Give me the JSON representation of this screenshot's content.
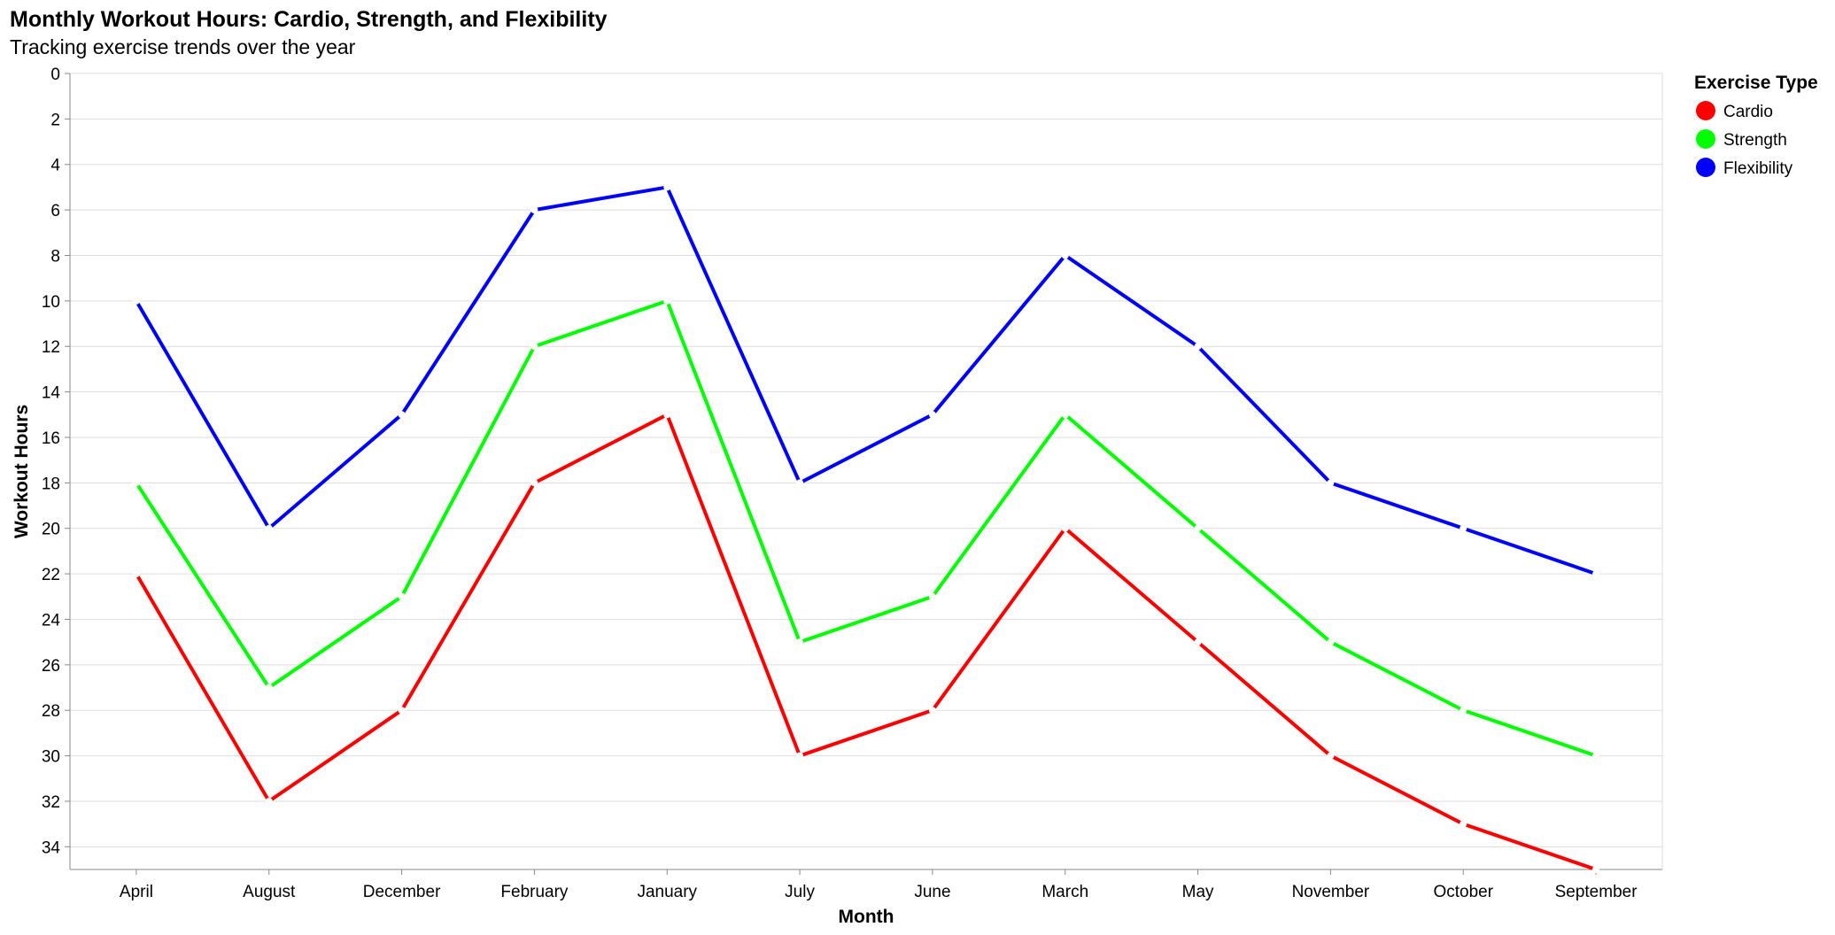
{
  "chart_data": {
    "type": "line",
    "title": "Monthly Workout Hours: Cardio, Strength, and Flexibility",
    "subtitle": "Tracking exercise trends over the year",
    "xlabel": "Month",
    "ylabel": "Workout Hours",
    "y_reversed": true,
    "ylim": [
      0,
      35
    ],
    "yticks": [
      0,
      2,
      4,
      6,
      8,
      10,
      12,
      14,
      16,
      18,
      20,
      22,
      24,
      26,
      28,
      30,
      32,
      34
    ],
    "grid": true,
    "legend_title": "Exercise Type",
    "legend_position": "top-right",
    "categories": [
      "April",
      "August",
      "December",
      "February",
      "January",
      "July",
      "June",
      "March",
      "May",
      "November",
      "October",
      "September"
    ],
    "series": [
      {
        "name": "Cardio",
        "color": "#ff0000",
        "values": [
          22,
          32,
          28,
          18,
          15,
          30,
          28,
          20,
          25,
          30,
          33,
          35
        ]
      },
      {
        "name": "Strength",
        "color": "#00ff00",
        "values": [
          18,
          27,
          23,
          12,
          10,
          25,
          23,
          15,
          20,
          25,
          28,
          30
        ]
      },
      {
        "name": "Flexibility",
        "color": "#0000ff",
        "values": [
          10,
          20,
          15,
          6,
          5,
          18,
          15,
          8,
          12,
          18,
          20,
          22
        ]
      }
    ]
  }
}
